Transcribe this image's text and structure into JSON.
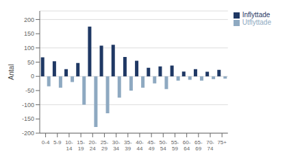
{
  "chart_data": {
    "type": "bar",
    "ylabel": "Antal",
    "categories": [
      "0-4",
      "5-9",
      "10-\n14",
      "15-\n19",
      "20-\n24",
      "25-\n29",
      "30-\n34",
      "35-\n39",
      "40-\n44",
      "45-\n49",
      "50-\n54",
      "55-\n59",
      "60-\n64",
      "65-\n69",
      "70-\n74",
      "75+"
    ],
    "series": [
      {
        "name": "Inflyttade",
        "color": "#1F3864",
        "values": [
          67,
          53,
          25,
          47,
          175,
          108,
          111,
          68,
          55,
          30,
          35,
          38,
          17,
          25,
          16,
          23
        ]
      },
      {
        "name": "Utflyttade",
        "color": "#8EA9C1",
        "values": [
          -35,
          -40,
          -20,
          -100,
          -178,
          -130,
          -75,
          -50,
          -40,
          -25,
          -45,
          -15,
          -12,
          -15,
          -10,
          -8
        ]
      }
    ],
    "ylim": [
      -200,
      230
    ],
    "yticks": [
      -200,
      -150,
      -100,
      -50,
      0,
      50,
      100,
      150,
      200
    ],
    "grid": true,
    "legend": "upper right"
  }
}
